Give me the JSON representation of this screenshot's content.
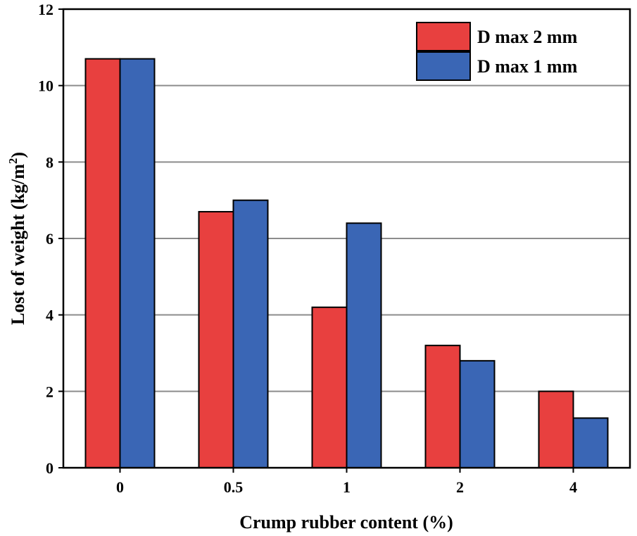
{
  "chart_data": {
    "type": "bar",
    "title": "",
    "xlabel": "Crump rubber content (%)",
    "ylabel": "Lost of weight (kg/m",
    "ylabel_superscript": "2",
    "ylabel_suffix": ")",
    "categories": [
      "0",
      "0.5",
      "1",
      "2",
      "4"
    ],
    "series": [
      {
        "name": "D max 2 mm",
        "color": "#e8403f",
        "values": [
          10.7,
          6.7,
          4.2,
          3.2,
          2.0
        ]
      },
      {
        "name": "D max 1 mm",
        "color": "#3a66b5",
        "values": [
          10.7,
          7.0,
          6.4,
          2.8,
          1.3
        ]
      }
    ],
    "ylim": [
      0,
      12
    ],
    "yticks": [
      "0",
      "2",
      "4",
      "6",
      "8",
      "10",
      "12"
    ],
    "grid": true,
    "legend_position": "top-right"
  }
}
